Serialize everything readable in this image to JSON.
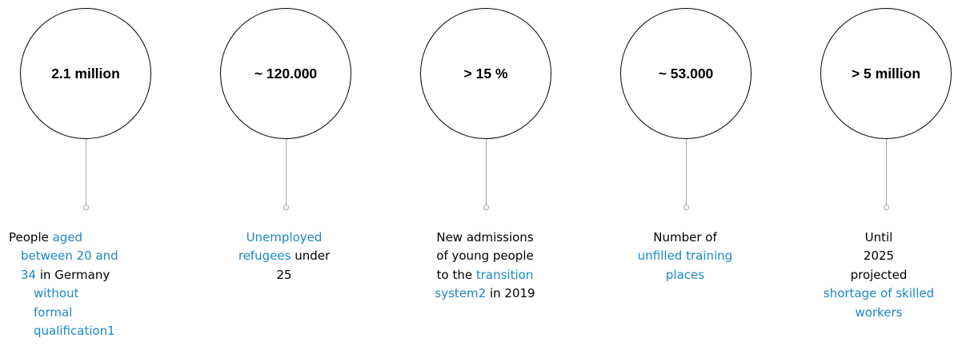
{
  "accent_color": "#1b88c2",
  "items": [
    {
      "value": "2.1 million",
      "lines": [
        [
          {
            "t": "People ",
            "hl": false
          },
          {
            "t": "aged",
            "hl": true
          }
        ],
        [
          {
            "t": "between 20 and",
            "hl": true
          }
        ],
        [
          {
            "t": "34",
            "hl": true
          },
          {
            "t": " in Germany",
            "hl": false
          }
        ],
        [
          {
            "t": "without",
            "hl": true
          }
        ],
        [
          {
            "t": "formal",
            "hl": true
          }
        ],
        [
          {
            "t": "qualification1",
            "hl": true
          }
        ]
      ]
    },
    {
      "value": "~ 120.000",
      "lines": [
        [
          {
            "t": "Unemployed",
            "hl": true
          }
        ],
        [
          {
            "t": "refugees",
            "hl": true
          },
          {
            "t": " under",
            "hl": false
          }
        ],
        [
          {
            "t": "25",
            "hl": false
          }
        ]
      ]
    },
    {
      "value": "> 15 %",
      "lines": [
        [
          {
            "t": "New admissions",
            "hl": false
          }
        ],
        [
          {
            "t": "of young people",
            "hl": false
          }
        ],
        [
          {
            "t": "to the ",
            "hl": false
          },
          {
            "t": "transition",
            "hl": true
          }
        ],
        [
          {
            "t": "system2",
            "hl": true
          },
          {
            "t": " in 2019",
            "hl": false
          }
        ]
      ]
    },
    {
      "value": "~ 53.000",
      "lines": [
        [
          {
            "t": "Number of",
            "hl": false
          }
        ],
        [
          {
            "t": "unfilled training",
            "hl": true
          }
        ],
        [
          {
            "t": "places",
            "hl": true
          }
        ]
      ]
    },
    {
      "value": "> 5 million",
      "lines": [
        [
          {
            "t": "Until",
            "hl": false
          }
        ],
        [
          {
            "t": "2025",
            "hl": false
          }
        ],
        [
          {
            "t": "projected",
            "hl": false
          }
        ],
        [
          {
            "t": "shortage of skilled",
            "hl": true
          }
        ],
        [
          {
            "t": "workers",
            "hl": true
          }
        ]
      ]
    }
  ]
}
